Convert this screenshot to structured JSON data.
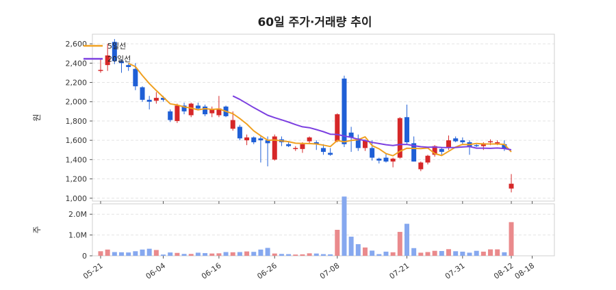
{
  "chart_data": [
    {
      "type": "candlestick",
      "title": "60일 주가·거래량 추이",
      "ylabel": "원",
      "ylim": [
        970,
        2700
      ],
      "yticks": [
        1000,
        1200,
        1400,
        1600,
        1800,
        2000,
        2200,
        2400,
        2600
      ],
      "ytick_labels": [
        "1,000",
        "1,200",
        "1,400",
        "1,600",
        "1,800",
        "2,000",
        "2,200",
        "2,400",
        "2,600"
      ],
      "grid": true,
      "legend_position": "top-left",
      "up_color": "#d62728",
      "down_color": "#1f5fd6",
      "ohlc": [
        [
          2320,
          2440,
          2300,
          2330
        ],
        [
          2380,
          2600,
          2320,
          2480
        ],
        [
          2620,
          2650,
          2390,
          2420
        ],
        [
          2420,
          2440,
          2300,
          2400
        ],
        [
          2380,
          2400,
          2320,
          2360
        ],
        [
          2340,
          2400,
          2120,
          2160
        ],
        [
          2150,
          2160,
          2000,
          2020
        ],
        [
          2020,
          2060,
          1920,
          2000
        ],
        [
          2010,
          2100,
          1980,
          2040
        ],
        [
          2040,
          2060,
          2000,
          2020
        ],
        [
          1900,
          1920,
          1790,
          1810
        ],
        [
          1800,
          1980,
          1780,
          1960
        ],
        [
          1960,
          1990,
          1870,
          1900
        ],
        [
          1860,
          1990,
          1840,
          1980
        ],
        [
          1960,
          1990,
          1910,
          1930
        ],
        [
          1950,
          1970,
          1850,
          1870
        ],
        [
          1880,
          1950,
          1840,
          1920
        ],
        [
          1860,
          2060,
          1840,
          1930
        ],
        [
          1950,
          1960,
          1840,
          1850
        ],
        [
          1720,
          1900,
          1700,
          1810
        ],
        [
          1740,
          1760,
          1600,
          1620
        ],
        [
          1600,
          1660,
          1550,
          1630
        ],
        [
          1630,
          1640,
          1560,
          1580
        ],
        [
          1620,
          1640,
          1370,
          1600
        ],
        [
          1600,
          1640,
          1330,
          1570
        ],
        [
          1400,
          1660,
          1390,
          1640
        ],
        [
          1610,
          1640,
          1540,
          1580
        ],
        [
          1560,
          1580,
          1530,
          1540
        ],
        [
          1510,
          1540,
          1490,
          1520
        ],
        [
          1510,
          1580,
          1470,
          1560
        ],
        [
          1590,
          1640,
          1560,
          1630
        ],
        [
          1580,
          1600,
          1500,
          1560
        ],
        [
          1520,
          1560,
          1450,
          1480
        ],
        [
          1470,
          1520,
          1440,
          1450
        ],
        [
          1590,
          1880,
          1580,
          1870
        ],
        [
          2240,
          2270,
          1530,
          1560
        ],
        [
          1680,
          1740,
          1480,
          1630
        ],
        [
          1620,
          1660,
          1490,
          1520
        ],
        [
          1520,
          1610,
          1490,
          1600
        ],
        [
          1520,
          1600,
          1390,
          1420
        ],
        [
          1410,
          1420,
          1360,
          1390
        ],
        [
          1420,
          1460,
          1370,
          1380
        ],
        [
          1380,
          1420,
          1320,
          1410
        ],
        [
          1420,
          1840,
          1410,
          1830
        ],
        [
          1840,
          1970,
          1560,
          1580
        ],
        [
          1570,
          1640,
          1380,
          1380
        ],
        [
          1300,
          1380,
          1280,
          1370
        ],
        [
          1370,
          1450,
          1350,
          1440
        ],
        [
          1450,
          1550,
          1430,
          1540
        ],
        [
          1510,
          1530,
          1450,
          1480
        ],
        [
          1520,
          1650,
          1500,
          1600
        ],
        [
          1620,
          1640,
          1580,
          1590
        ],
        [
          1600,
          1630,
          1550,
          1580
        ],
        [
          1580,
          1600,
          1450,
          1530
        ],
        [
          1550,
          1560,
          1530,
          1540
        ],
        [
          1540,
          1580,
          1500,
          1570
        ],
        [
          1580,
          1610,
          1550,
          1590
        ],
        [
          1580,
          1600,
          1550,
          1580
        ],
        [
          1560,
          1600,
          1490,
          1510
        ],
        [
          1100,
          1250,
          1060,
          1150
        ]
      ],
      "series": [
        {
          "name": "5일선",
          "color": "#f0a020",
          "window": 5
        },
        {
          "name": "20일선",
          "color": "#7b3fe0",
          "window": 20
        }
      ]
    },
    {
      "type": "bar",
      "ylabel": "주",
      "ylim": [
        0,
        2500000
      ],
      "yticks": [
        0,
        1000000,
        2000000
      ],
      "ytick_labels": [
        "0",
        "1.0M",
        "2.0M"
      ],
      "volume": [
        220000,
        300000,
        180000,
        170000,
        160000,
        220000,
        300000,
        340000,
        280000,
        60000,
        160000,
        140000,
        90000,
        90000,
        150000,
        130000,
        110000,
        120000,
        180000,
        170000,
        180000,
        210000,
        190000,
        300000,
        380000,
        110000,
        90000,
        80000,
        60000,
        70000,
        120000,
        110000,
        80000,
        70000,
        1250000,
        2850000,
        920000,
        560000,
        400000,
        250000,
        80000,
        200000,
        170000,
        1150000,
        1540000,
        370000,
        150000,
        180000,
        240000,
        230000,
        320000,
        220000,
        200000,
        150000,
        240000,
        200000,
        310000,
        310000,
        170000,
        1620000
      ],
      "x_tick_labels": [
        "05-21",
        "06-04",
        "06-16",
        "06-26",
        "07-08",
        "07-21",
        "07-31",
        "08-12",
        "08-18"
      ],
      "x_tick_indices": [
        0,
        9,
        17,
        25,
        34,
        44,
        52,
        59,
        62
      ]
    }
  ]
}
